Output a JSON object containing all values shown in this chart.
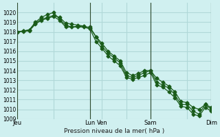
{
  "title": "Pression niveau de la mer( hPa )",
  "bg_color": "#d0f0f0",
  "grid_color": "#b0d8d8",
  "line_color": "#1a5c1a",
  "ylim": [
    1009,
    1021
  ],
  "yticks": [
    1009,
    1010,
    1011,
    1012,
    1013,
    1014,
    1015,
    1016,
    1017,
    1018,
    1019,
    1020
  ],
  "xtick_labels": [
    "Jeu",
    "",
    "Lun",
    "Ven",
    "",
    "Sam",
    "",
    "Dim"
  ],
  "xtick_positions": [
    0,
    3,
    6,
    7,
    9,
    11,
    14,
    16
  ],
  "vlines": [
    0,
    6,
    11,
    16
  ],
  "series": [
    {
      "x": [
        0,
        0.5,
        1,
        1.5,
        2,
        2.5,
        3,
        3.5,
        4,
        4.5,
        5,
        5.5,
        6,
        6.5,
        7,
        7.5,
        8,
        8.5,
        9,
        9.5,
        10,
        10.5,
        11,
        11.5,
        12,
        12.5,
        13,
        13.5,
        14,
        14.5,
        15,
        15.5,
        16
      ],
      "y": [
        1018.0,
        1018.1,
        1018.2,
        1019.0,
        1019.5,
        1019.8,
        1020.0,
        1019.3,
        1018.7,
        1018.5,
        1018.6,
        1018.5,
        1018.5,
        1017.5,
        1016.5,
        1015.8,
        1015.3,
        1014.8,
        1013.5,
        1013.3,
        1013.5,
        1013.8,
        1014.0,
        1012.8,
        1012.5,
        1012.2,
        1011.5,
        1010.5,
        1010.5,
        1009.8,
        1009.5,
        1010.5,
        1010.0
      ]
    },
    {
      "x": [
        0,
        0.5,
        1,
        1.5,
        2,
        2.5,
        3,
        3.5,
        4,
        4.5,
        5,
        5.5,
        6,
        6.5,
        7,
        7.5,
        8,
        8.5,
        9,
        9.5,
        10,
        10.5,
        11,
        11.5,
        12,
        12.5,
        13,
        13.5,
        14,
        14.5,
        15,
        15.5,
        16
      ],
      "y": [
        1018.0,
        1018.05,
        1018.1,
        1018.8,
        1019.2,
        1019.4,
        1019.6,
        1019.2,
        1018.5,
        1018.5,
        1018.5,
        1018.5,
        1018.3,
        1017.0,
        1016.3,
        1015.5,
        1015.0,
        1014.5,
        1013.3,
        1013.1,
        1013.3,
        1013.5,
        1013.8,
        1012.5,
        1012.3,
        1011.8,
        1011.2,
        1010.3,
        1010.2,
        1009.5,
        1009.3,
        1010.2,
        1009.8
      ]
    },
    {
      "x": [
        0,
        0.5,
        1,
        1.5,
        2,
        2.5,
        3,
        3.5,
        4,
        4.5,
        5,
        5.5,
        6,
        6.5,
        7,
        7.5,
        8,
        8.5,
        9,
        9.5,
        10,
        10.5,
        11,
        11.5,
        12,
        12.5,
        13,
        13.5,
        14,
        14.5,
        15,
        15.5,
        16
      ],
      "y": [
        1018.0,
        1018.1,
        1018.2,
        1018.9,
        1019.3,
        1019.5,
        1019.7,
        1019.5,
        1018.9,
        1018.8,
        1018.7,
        1018.6,
        1018.4,
        1017.5,
        1016.8,
        1016.0,
        1015.5,
        1015.0,
        1013.8,
        1013.5,
        1013.7,
        1014.0,
        1014.0,
        1013.2,
        1012.8,
        1012.4,
        1011.8,
        1010.8,
        1010.7,
        1010.2,
        1010.0,
        1010.5,
        1010.2
      ]
    }
  ]
}
